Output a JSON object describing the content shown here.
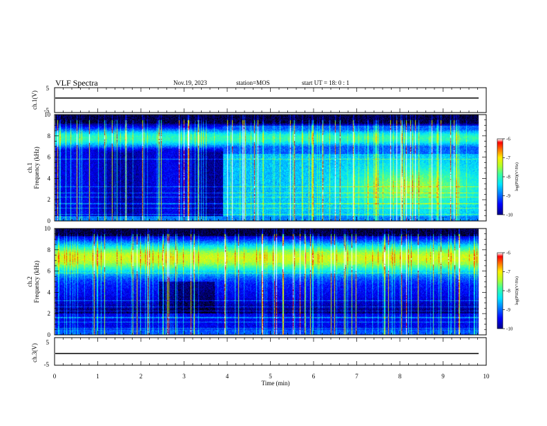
{
  "header": {
    "title": "VLF Spectra",
    "date": "Nov.19, 2023",
    "station": "station=MOS",
    "start": "start  UT =  18: 0  : 1"
  },
  "chart_data": {
    "type": "heatmap",
    "x_axis": {
      "label": "Time (min)",
      "range": [
        0,
        10
      ],
      "ticks": [
        "0",
        "1",
        "2",
        "3",
        "4",
        "5",
        "6",
        "7",
        "8",
        "9",
        "10"
      ]
    },
    "panels": [
      {
        "name": "ch.1(V)",
        "kind": "waveform",
        "ylim": [
          -5,
          5
        ],
        "ticks": [
          "5",
          "-5"
        ],
        "trace_level": 0
      },
      {
        "name": "ch.1",
        "kind": "spectrogram",
        "ylabel": "Frequency (kHz)",
        "ylim": [
          0,
          10
        ],
        "ticks": [
          "0",
          "2",
          "4",
          "6",
          "8",
          "10"
        ],
        "colorbar": {
          "label": "log(PSD)(V²/Hz)",
          "range": [
            -10,
            -6
          ],
          "ticks": [
            "-6",
            "-7",
            "-8",
            "-9",
            "-10"
          ]
        }
      },
      {
        "name": "ch.2",
        "kind": "spectrogram",
        "ylabel": "Frequency (kHz)",
        "ylim": [
          0,
          10
        ],
        "ticks": [
          "0",
          "2",
          "4",
          "6",
          "8",
          "10"
        ],
        "colorbar": {
          "label": "log(PSD)(V²/Hz)",
          "range": [
            -10,
            -6
          ],
          "ticks": [
            "-6",
            "-7",
            "-8",
            "-9",
            "-10"
          ]
        }
      },
      {
        "name": "ch.3(V)",
        "kind": "waveform",
        "ylim": [
          -5,
          5
        ],
        "ticks": [
          "5",
          "-5"
        ],
        "trace_level": 0
      }
    ],
    "data_end_min": 9.85,
    "colormap": [
      "#000000",
      "#00007f",
      "#0000ff",
      "#007fff",
      "#00ffff",
      "#7fff7f",
      "#ffff00",
      "#ff7f00",
      "#ff0000",
      "#ffffff"
    ]
  }
}
